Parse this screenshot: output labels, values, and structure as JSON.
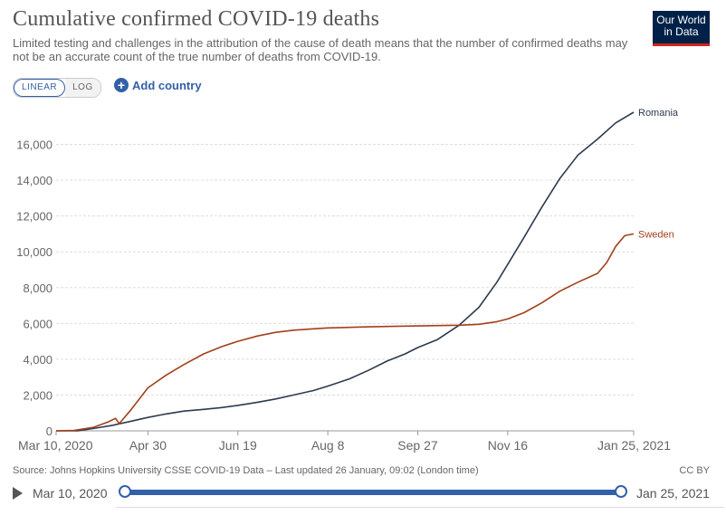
{
  "header": {
    "title": "Cumulative confirmed COVID-19 deaths",
    "subtitle": "Limited testing and challenges in the attribution of the cause of death means that the number of confirmed deaths may not be an accurate count of the true number of deaths from COVID-19.",
    "logo_line1": "Our World",
    "logo_line2": "in Data"
  },
  "controls": {
    "linear_label": "LINEAR",
    "log_label": "LOG",
    "add_country_label": "Add country"
  },
  "footer": {
    "source": "Source: Johns Hopkins University CSSE COVID-19 Data – Last updated 26 January, 09:02 (London time)",
    "license": "CC BY"
  },
  "timeline": {
    "start_label": "Mar 10, 2020",
    "end_label": "Jan 25, 2021"
  },
  "colors": {
    "romania": "#2d3a4f",
    "sweden": "#a2401b",
    "grid": "#dddddd",
    "axis_text": "#666666",
    "accent": "#3360a9"
  },
  "chart_data": {
    "type": "line",
    "title": "Cumulative confirmed COVID-19 deaths",
    "xlabel": "",
    "ylabel": "",
    "x_start": "2020-03-10",
    "x_end": "2021-01-25",
    "x_ticks": [
      {
        "date": "2020-03-10",
        "label": "Mar 10, 2020"
      },
      {
        "date": "2020-04-30",
        "label": "Apr 30"
      },
      {
        "date": "2020-06-19",
        "label": "Jun 19"
      },
      {
        "date": "2020-08-08",
        "label": "Aug 8"
      },
      {
        "date": "2020-09-27",
        "label": "Sep 27"
      },
      {
        "date": "2020-11-16",
        "label": "Nov 16"
      },
      {
        "date": "2021-01-25",
        "label": "Jan 25, 2021"
      }
    ],
    "y_ticks": [
      0,
      2000,
      4000,
      6000,
      8000,
      10000,
      12000,
      14000,
      16000
    ],
    "y_tick_labels": [
      "0",
      "2,000",
      "4,000",
      "6,000",
      "8,000",
      "10,000",
      "12,000",
      "14,000",
      "16,000"
    ],
    "ylim": [
      0,
      18000
    ],
    "grid": true,
    "legend": "line-end labels",
    "series": [
      {
        "name": "Romania",
        "points": [
          [
            "2020-03-10",
            0
          ],
          [
            "2020-03-22",
            5
          ],
          [
            "2020-04-01",
            150
          ],
          [
            "2020-04-10",
            300
          ],
          [
            "2020-04-20",
            520
          ],
          [
            "2020-04-30",
            750
          ],
          [
            "2020-05-10",
            940
          ],
          [
            "2020-05-20",
            1100
          ],
          [
            "2020-05-31",
            1200
          ],
          [
            "2020-06-10",
            1300
          ],
          [
            "2020-06-19",
            1420
          ],
          [
            "2020-06-30",
            1600
          ],
          [
            "2020-07-10",
            1780
          ],
          [
            "2020-07-20",
            2000
          ],
          [
            "2020-07-31",
            2250
          ],
          [
            "2020-08-08",
            2500
          ],
          [
            "2020-08-20",
            2900
          ],
          [
            "2020-08-31",
            3400
          ],
          [
            "2020-09-10",
            3900
          ],
          [
            "2020-09-20",
            4300
          ],
          [
            "2020-09-27",
            4650
          ],
          [
            "2020-10-08",
            5100
          ],
          [
            "2020-10-20",
            5900
          ],
          [
            "2020-10-31",
            6900
          ],
          [
            "2020-11-10",
            8300
          ],
          [
            "2020-11-16",
            9300
          ],
          [
            "2020-11-25",
            10800
          ],
          [
            "2020-12-05",
            12500
          ],
          [
            "2020-12-15",
            14100
          ],
          [
            "2020-12-25",
            15400
          ],
          [
            "2021-01-05",
            16300
          ],
          [
            "2021-01-15",
            17200
          ],
          [
            "2021-01-25",
            17800
          ]
        ]
      },
      {
        "name": "Sweden",
        "points": [
          [
            "2020-03-10",
            0
          ],
          [
            "2020-03-20",
            20
          ],
          [
            "2020-03-31",
            200
          ],
          [
            "2020-04-08",
            500
          ],
          [
            "2020-04-12",
            700
          ],
          [
            "2020-04-14",
            400
          ],
          [
            "2020-04-20",
            1100
          ],
          [
            "2020-04-30",
            2400
          ],
          [
            "2020-05-10",
            3100
          ],
          [
            "2020-05-20",
            3700
          ],
          [
            "2020-05-31",
            4300
          ],
          [
            "2020-06-10",
            4700
          ],
          [
            "2020-06-19",
            5000
          ],
          [
            "2020-06-30",
            5300
          ],
          [
            "2020-07-10",
            5500
          ],
          [
            "2020-07-20",
            5620
          ],
          [
            "2020-07-31",
            5700
          ],
          [
            "2020-08-08",
            5750
          ],
          [
            "2020-08-31",
            5810
          ],
          [
            "2020-09-27",
            5860
          ],
          [
            "2020-10-20",
            5900
          ],
          [
            "2020-10-31",
            5950
          ],
          [
            "2020-11-10",
            6100
          ],
          [
            "2020-11-16",
            6250
          ],
          [
            "2020-11-25",
            6600
          ],
          [
            "2020-12-05",
            7150
          ],
          [
            "2020-12-15",
            7800
          ],
          [
            "2020-12-25",
            8300
          ],
          [
            "2021-01-05",
            8800
          ],
          [
            "2021-01-10",
            9400
          ],
          [
            "2021-01-15",
            10300
          ],
          [
            "2021-01-20",
            10900
          ],
          [
            "2021-01-25",
            11000
          ]
        ]
      }
    ]
  }
}
